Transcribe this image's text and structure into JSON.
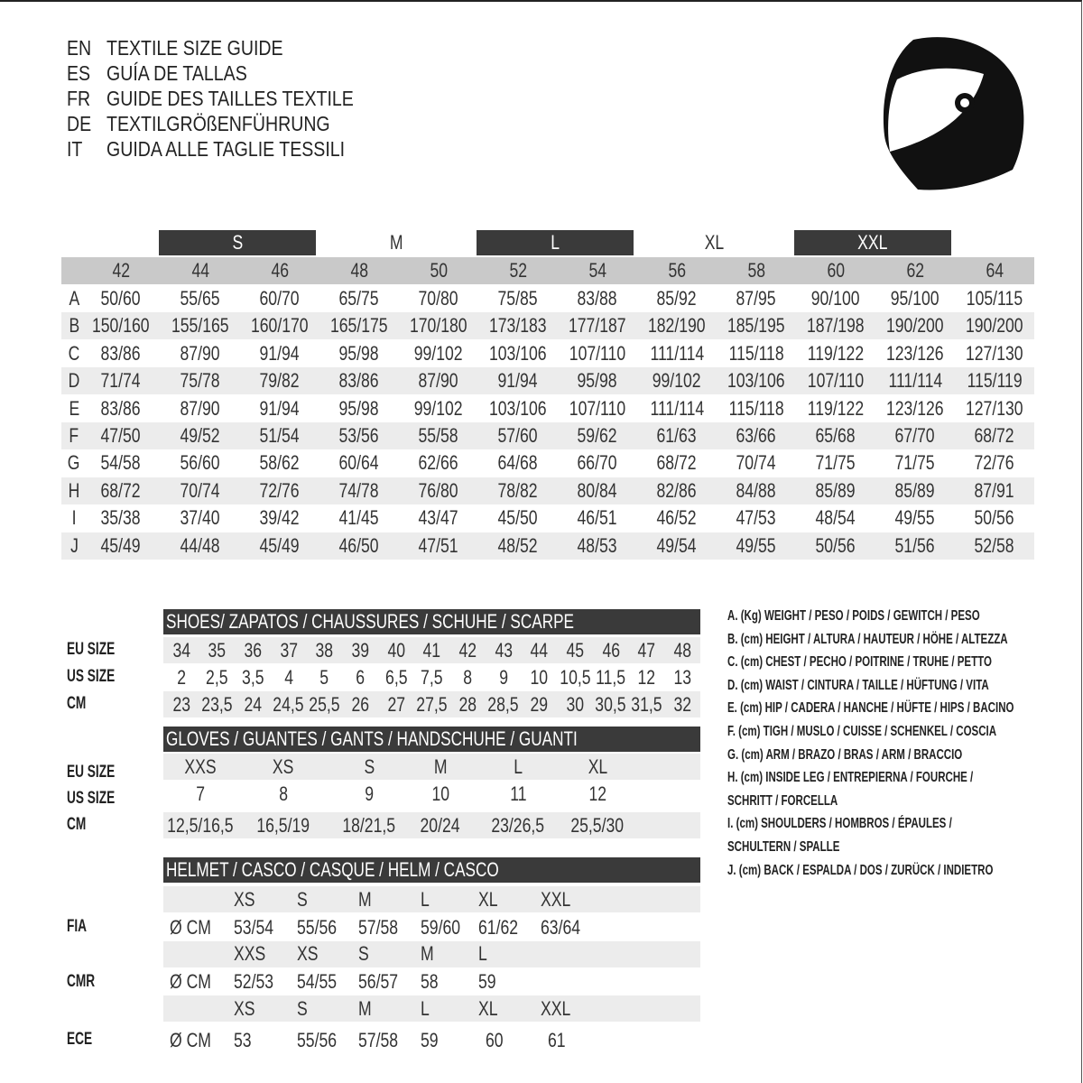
{
  "titles": [
    {
      "code": "EN",
      "text": "TEXTILE SIZE GUIDE"
    },
    {
      "code": "ES",
      "text": "GUÍA DE TALLAS"
    },
    {
      "code": "FR",
      "text": "GUIDE DES TAILLES TEXTILE"
    },
    {
      "code": "DE",
      "text": "TEXTILGRÖßENFÜHRUNG"
    },
    {
      "code": "IT",
      "text": "GUIDA ALLE TAGLIE TESSILI"
    }
  ],
  "icon": "helmet-icon",
  "textile": {
    "size_groups": [
      {
        "label": "S",
        "style": "dark"
      },
      {
        "label": "M",
        "style": "plain"
      },
      {
        "label": "L",
        "style": "dark"
      },
      {
        "label": "XL",
        "style": "plain"
      },
      {
        "label": "XXL",
        "style": "dark"
      }
    ],
    "sizes": [
      "42",
      "44",
      "46",
      "48",
      "50",
      "52",
      "54",
      "56",
      "58",
      "60",
      "62",
      "64"
    ],
    "rows": [
      {
        "key": "A",
        "values": [
          "50/60",
          "55/65",
          "60/70",
          "65/75",
          "70/80",
          "75/85",
          "83/88",
          "85/92",
          "87/95",
          "90/100",
          "95/100",
          "105/115"
        ]
      },
      {
        "key": "B",
        "values": [
          "150/160",
          "155/165",
          "160/170",
          "165/175",
          "170/180",
          "173/183",
          "177/187",
          "182/190",
          "185/195",
          "187/198",
          "190/200",
          "190/200"
        ]
      },
      {
        "key": "C",
        "values": [
          "83/86",
          "87/90",
          "91/94",
          "95/98",
          "99/102",
          "103/106",
          "107/110",
          "111/114",
          "115/118",
          "119/122",
          "123/126",
          "127/130"
        ]
      },
      {
        "key": "D",
        "values": [
          "71/74",
          "75/78",
          "79/82",
          "83/86",
          "87/90",
          "91/94",
          "95/98",
          "99/102",
          "103/106",
          "107/110",
          "111/114",
          "115/119"
        ]
      },
      {
        "key": "E",
        "values": [
          "83/86",
          "87/90",
          "91/94",
          "95/98",
          "99/102",
          "103/106",
          "107/110",
          "111/114",
          "115/118",
          "119/122",
          "123/126",
          "127/130"
        ]
      },
      {
        "key": "F",
        "values": [
          "47/50",
          "49/52",
          "51/54",
          "53/56",
          "55/58",
          "57/60",
          "59/62",
          "61/63",
          "63/66",
          "65/68",
          "67/70",
          "68/72"
        ]
      },
      {
        "key": "G",
        "values": [
          "54/58",
          "56/60",
          "58/62",
          "60/64",
          "62/66",
          "64/68",
          "66/70",
          "68/72",
          "70/74",
          "71/75",
          "71/75",
          "72/76"
        ]
      },
      {
        "key": "H",
        "values": [
          "68/72",
          "70/74",
          "72/76",
          "74/78",
          "76/80",
          "78/82",
          "80/84",
          "82/86",
          "84/88",
          "85/89",
          "85/89",
          "87/91"
        ]
      },
      {
        "key": "I",
        "values": [
          "35/38",
          "37/40",
          "39/42",
          "41/45",
          "43/47",
          "45/50",
          "46/51",
          "46/52",
          "47/53",
          "48/54",
          "49/55",
          "50/56"
        ]
      },
      {
        "key": "J",
        "values": [
          "45/49",
          "44/48",
          "45/49",
          "46/50",
          "47/51",
          "48/52",
          "48/53",
          "49/54",
          "49/55",
          "50/56",
          "51/56",
          "52/58"
        ]
      }
    ]
  },
  "shoes": {
    "title": "SHOES/ ZAPATOS / CHAUSSURES / SCHUHE / SCARPE",
    "rows": [
      {
        "label": "EU SIZE",
        "values": [
          "34",
          "35",
          "36",
          "37",
          "38",
          "39",
          "40",
          "41",
          "42",
          "43",
          "44",
          "45",
          "46",
          "47",
          "48"
        ]
      },
      {
        "label": "US SIZE",
        "values": [
          "2",
          "2,5",
          "3,5",
          "4",
          "5",
          "6",
          "6,5",
          "7,5",
          "8",
          "9",
          "10",
          "10,5",
          "11,5",
          "12",
          "13"
        ]
      },
      {
        "label": "CM",
        "values": [
          "23",
          "23,5",
          "24",
          "24,5",
          "25,5",
          "26",
          "27",
          "27,5",
          "28",
          "28,5",
          "29",
          "30",
          "30,5",
          "31,5",
          "32"
        ]
      }
    ]
  },
  "gloves": {
    "title": "GLOVES / GUANTES / GANTS / HANDSCHUHE / GUANTI",
    "rows": [
      {
        "label": "EU SIZE",
        "values": [
          "XXS",
          "XS",
          "S",
          "M",
          "L",
          "XL"
        ]
      },
      {
        "label": "US SIZE",
        "values": [
          "7",
          "8",
          "9",
          "10",
          "11",
          "12"
        ]
      },
      {
        "label": "CM",
        "values": [
          "12,5/16,5",
          "16,5/19",
          "18/21,5",
          "20/24",
          "23/26,5",
          "25,5/30"
        ]
      }
    ]
  },
  "helmet": {
    "title": "HELMET / CASCO / CASQUE / HELM / CASCO",
    "unit": "Ø CM",
    "standards": [
      {
        "label": "FIA",
        "sizes": [
          "XS",
          "S",
          "M",
          "L",
          "XL",
          "XXL"
        ],
        "values": [
          "53/54",
          "55/56",
          "57/58",
          "59/60",
          "61/62",
          "63/64"
        ]
      },
      {
        "label": "CMR",
        "sizes": [
          "XXS",
          "XS",
          "S",
          "M",
          "L"
        ],
        "values": [
          "52/53",
          "54/55",
          "56/57",
          "58",
          "59"
        ]
      },
      {
        "label": "ECE",
        "sizes": [
          "XS",
          "S",
          "M",
          "L",
          "XL",
          "XXL"
        ],
        "values": [
          "53",
          "55/56",
          "57/58",
          "59",
          "60",
          "61"
        ]
      }
    ]
  },
  "legend": [
    "A. (Kg) WEIGHT / PESO / POIDS / GEWITCH / PESO",
    "B. (cm) HEIGHT / ALTURA / HAUTEUR / HÖHE / ALTEZZA",
    "C. (cm) CHEST / PECHO / POITRINE / TRUHE / PETTO",
    "D. (cm) WAIST / CINTURA / TAILLE / HÜFTUNG / VITA",
    "E. (cm) HIP / CADERA / HANCHE / HÜFTE / HIPS /  BACINO",
    "F.  (cm) TIGH / MUSLO / CUISSE / SCHENKEL / COSCIA",
    "G. (cm) ARM  / BRAZO / BRAS / ARM / BRACCIO",
    "H. (cm) INSIDE LEG / ENTREPIERNA / FOURCHE /",
    "SCHRITT / FORCELLA",
    "I.  (cm) SHOULDERS / HOMBROS / ÉPAULES /",
    "SCHULTERN / SPALLE",
    "J. (cm) BACK / ESPALDA / DOS / ZURÜCK / INDIETRO"
  ]
}
